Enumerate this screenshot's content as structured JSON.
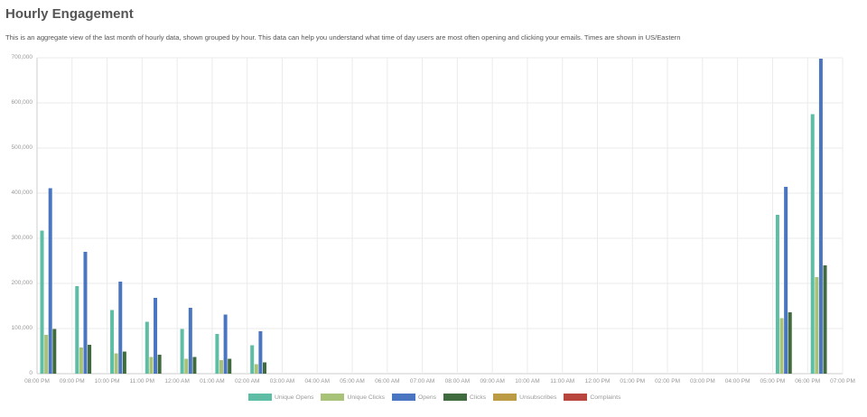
{
  "header": {
    "title": "Hourly Engagement",
    "description": "This is an aggregate view of the last month of hourly data, shown grouped by hour. This data can help you understand what time of day users are most often opening and clicking your emails. Times are shown in  US/Eastern"
  },
  "colors": {
    "unique_opens": "#5dbea5",
    "unique_clicks": "#a8c277",
    "opens": "#4a76c1",
    "clicks": "#3f6b3f",
    "unsubscribes": "#bc9b45",
    "complaints": "#b8463f",
    "grid": "#ebebeb",
    "axis": "#cccccc"
  },
  "legend": [
    {
      "label": "Unique Opens",
      "color": "#5dbea5"
    },
    {
      "label": "Unique Clicks",
      "color": "#a8c277"
    },
    {
      "label": "Opens",
      "color": "#4a76c1"
    },
    {
      "label": "Clicks",
      "color": "#3f6b3f"
    },
    {
      "label": "Unsubscribes",
      "color": "#bc9b45"
    },
    {
      "label": "Complaints",
      "color": "#b8463f"
    }
  ],
  "chart_data": {
    "type": "bar",
    "title": "Hourly Engagement",
    "xlabel": "",
    "ylabel": "",
    "ylim": [
      0,
      700000
    ],
    "yticks": [
      "0",
      "100,000",
      "200,000",
      "300,000",
      "400,000",
      "500,000",
      "600,000",
      "700,000"
    ],
    "grid": true,
    "legend_position": "bottom",
    "categories": [
      "08:00 PM",
      "09:00 PM",
      "10:00 PM",
      "11:00 PM",
      "12:00 AM",
      "01:00 AM",
      "02:00 AM",
      "03:00 AM",
      "04:00 AM",
      "05:00 AM",
      "06:00 AM",
      "07:00 AM",
      "08:00 AM",
      "09:00 AM",
      "10:00 AM",
      "11:00 AM",
      "12:00 PM",
      "01:00 PM",
      "02:00 PM",
      "03:00 PM",
      "04:00 PM",
      "05:00 PM",
      "06:00 PM",
      "07:00 PM"
    ],
    "series": [
      {
        "name": "Unique Opens",
        "values": [
          317000,
          194000,
          141000,
          115000,
          99000,
          88000,
          63000,
          0,
          0,
          0,
          0,
          0,
          0,
          0,
          0,
          0,
          0,
          0,
          0,
          0,
          0,
          352000,
          575000,
          0
        ]
      },
      {
        "name": "Unique Clicks",
        "values": [
          86000,
          58000,
          45000,
          37000,
          33000,
          30000,
          21000,
          0,
          0,
          0,
          0,
          0,
          0,
          0,
          0,
          0,
          0,
          0,
          0,
          0,
          0,
          123000,
          214000,
          0
        ]
      },
      {
        "name": "Opens",
        "values": [
          411000,
          270000,
          204000,
          168000,
          146000,
          131000,
          94000,
          0,
          0,
          0,
          0,
          0,
          0,
          0,
          0,
          0,
          0,
          0,
          0,
          0,
          0,
          414000,
          698000,
          0
        ]
      },
      {
        "name": "Clicks",
        "values": [
          99000,
          64000,
          49000,
          42000,
          37000,
          33000,
          25000,
          0,
          0,
          0,
          0,
          0,
          0,
          0,
          0,
          0,
          0,
          0,
          0,
          0,
          0,
          136000,
          240000,
          0
        ]
      },
      {
        "name": "Unsubscribes",
        "values": [
          0,
          0,
          0,
          0,
          0,
          0,
          0,
          0,
          0,
          0,
          0,
          0,
          0,
          0,
          0,
          0,
          0,
          0,
          0,
          0,
          0,
          0,
          0,
          0
        ]
      },
      {
        "name": "Complaints",
        "values": [
          0,
          0,
          0,
          0,
          0,
          0,
          0,
          0,
          0,
          0,
          0,
          0,
          0,
          0,
          0,
          0,
          0,
          0,
          0,
          0,
          0,
          0,
          0,
          0
        ]
      }
    ]
  }
}
